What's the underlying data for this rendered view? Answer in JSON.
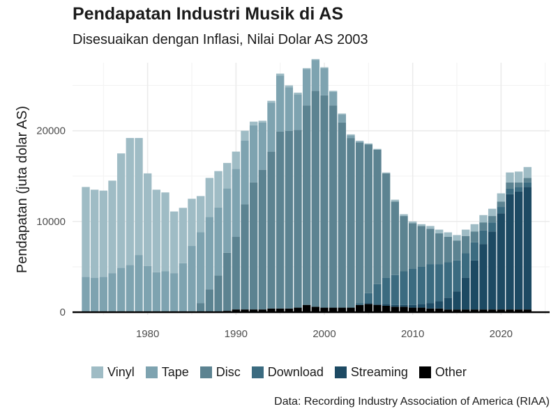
{
  "title": "Pendapatan Industri Musik di AS",
  "subtitle": "Disesuaikan dengan Inflasi, Nilai Dolar AS 2003",
  "caption": "Data: Recording Industry Association of America (RIAA)",
  "colors": {
    "Vinyl": "#9fbcc5",
    "Tape": "#7ea3b0",
    "Disc": "#5c8391",
    "Download": "#3b6b80",
    "Streaming": "#1d4a63",
    "Other": "#000000"
  },
  "chart_data": {
    "type": "bar",
    "stacked": true,
    "title": "Pendapatan Industri Musik di AS",
    "subtitle": "Disesuaikan dengan Inflasi, Nilai Dolar AS 2003",
    "xlabel": "",
    "ylabel": "Pendapatan (juta dolar AS)",
    "xlim": [
      1971.5,
      2025.5
    ],
    "ylim": [
      -300,
      27500
    ],
    "x_ticks": [
      1980,
      1990,
      2000,
      2010,
      2020
    ],
    "y_ticks": [
      0,
      10000,
      20000
    ],
    "grid": true,
    "legend_position": "bottom",
    "categories": [
      1973,
      1974,
      1975,
      1976,
      1977,
      1978,
      1979,
      1980,
      1981,
      1982,
      1983,
      1984,
      1985,
      1986,
      1987,
      1988,
      1989,
      1990,
      1991,
      1992,
      1993,
      1994,
      1995,
      1996,
      1997,
      1998,
      1999,
      2000,
      2001,
      2002,
      2003,
      2004,
      2005,
      2006,
      2007,
      2008,
      2009,
      2010,
      2011,
      2012,
      2013,
      2014,
      2015,
      2016,
      2017,
      2018,
      2019,
      2020,
      2021,
      2022,
      2023
    ],
    "series": [
      {
        "name": "Other",
        "values": [
          0,
          0,
          0,
          0,
          0,
          0,
          0,
          0,
          0,
          0,
          0,
          0,
          0,
          0,
          0,
          50,
          150,
          300,
          300,
          300,
          300,
          400,
          400,
          400,
          500,
          800,
          600,
          500,
          500,
          500,
          500,
          800,
          900,
          800,
          700,
          600,
          600,
          500,
          500,
          400,
          400,
          300,
          300,
          300,
          300,
          300,
          300,
          300,
          300,
          300,
          300
        ]
      },
      {
        "name": "Streaming",
        "values": [
          0,
          0,
          0,
          0,
          0,
          0,
          0,
          0,
          0,
          0,
          0,
          0,
          0,
          0,
          0,
          0,
          0,
          0,
          0,
          0,
          0,
          0,
          0,
          0,
          0,
          0,
          0,
          0,
          0,
          0,
          0,
          0,
          100,
          100,
          200,
          200,
          200,
          300,
          400,
          600,
          800,
          1300,
          2000,
          3500,
          5400,
          7200,
          8600,
          10600,
          12700,
          13000,
          13500
        ]
      },
      {
        "name": "Download",
        "values": [
          0,
          0,
          0,
          0,
          0,
          0,
          0,
          0,
          0,
          0,
          0,
          0,
          0,
          0,
          0,
          0,
          0,
          0,
          0,
          0,
          0,
          0,
          0,
          0,
          0,
          0,
          0,
          0,
          0,
          0,
          0,
          200,
          1100,
          2200,
          2900,
          3300,
          3700,
          4000,
          4100,
          4300,
          4100,
          3900,
          3400,
          2700,
          2000,
          1500,
          1000,
          700,
          600,
          500,
          500
        ]
      },
      {
        "name": "Disc",
        "values": [
          0,
          0,
          0,
          0,
          0,
          0,
          0,
          0,
          0,
          0,
          0,
          0,
          100,
          1000,
          2500,
          4000,
          6400,
          8000,
          11600,
          14000,
          15400,
          17300,
          19500,
          19600,
          19600,
          22000,
          23800,
          23400,
          22300,
          20400,
          18700,
          17700,
          16400,
          14800,
          11500,
          8100,
          6100,
          5000,
          4500,
          3900,
          3400,
          2800,
          2200,
          1900,
          1200,
          900,
          700,
          600,
          700,
          500,
          500
        ]
      },
      {
        "name": "Tape",
        "values": [
          3900,
          3800,
          3900,
          4300,
          4900,
          5200,
          6300,
          5100,
          4400,
          4500,
          4300,
          5400,
          7200,
          7800,
          8000,
          7500,
          7100,
          7500,
          7000,
          6300,
          5200,
          5400,
          6200,
          4800,
          3900,
          4000,
          3400,
          3000,
          1500,
          900,
          300,
          100,
          0,
          0,
          0,
          0,
          0,
          0,
          0,
          0,
          0,
          0,
          0,
          0,
          0,
          0,
          0,
          0,
          0,
          0,
          0
        ]
      },
      {
        "name": "Vinyl",
        "values": [
          9900,
          9700,
          9500,
          10200,
          12600,
          14000,
          12900,
          10200,
          9100,
          8700,
          6800,
          6100,
          5200,
          4000,
          4300,
          4000,
          2800,
          1900,
          1100,
          400,
          200,
          200,
          200,
          200,
          200,
          100,
          100,
          100,
          100,
          100,
          100,
          100,
          100,
          100,
          100,
          200,
          200,
          200,
          200,
          300,
          400,
          500,
          600,
          700,
          800,
          800,
          800,
          900,
          1100,
          1200,
          1200
        ]
      }
    ]
  }
}
